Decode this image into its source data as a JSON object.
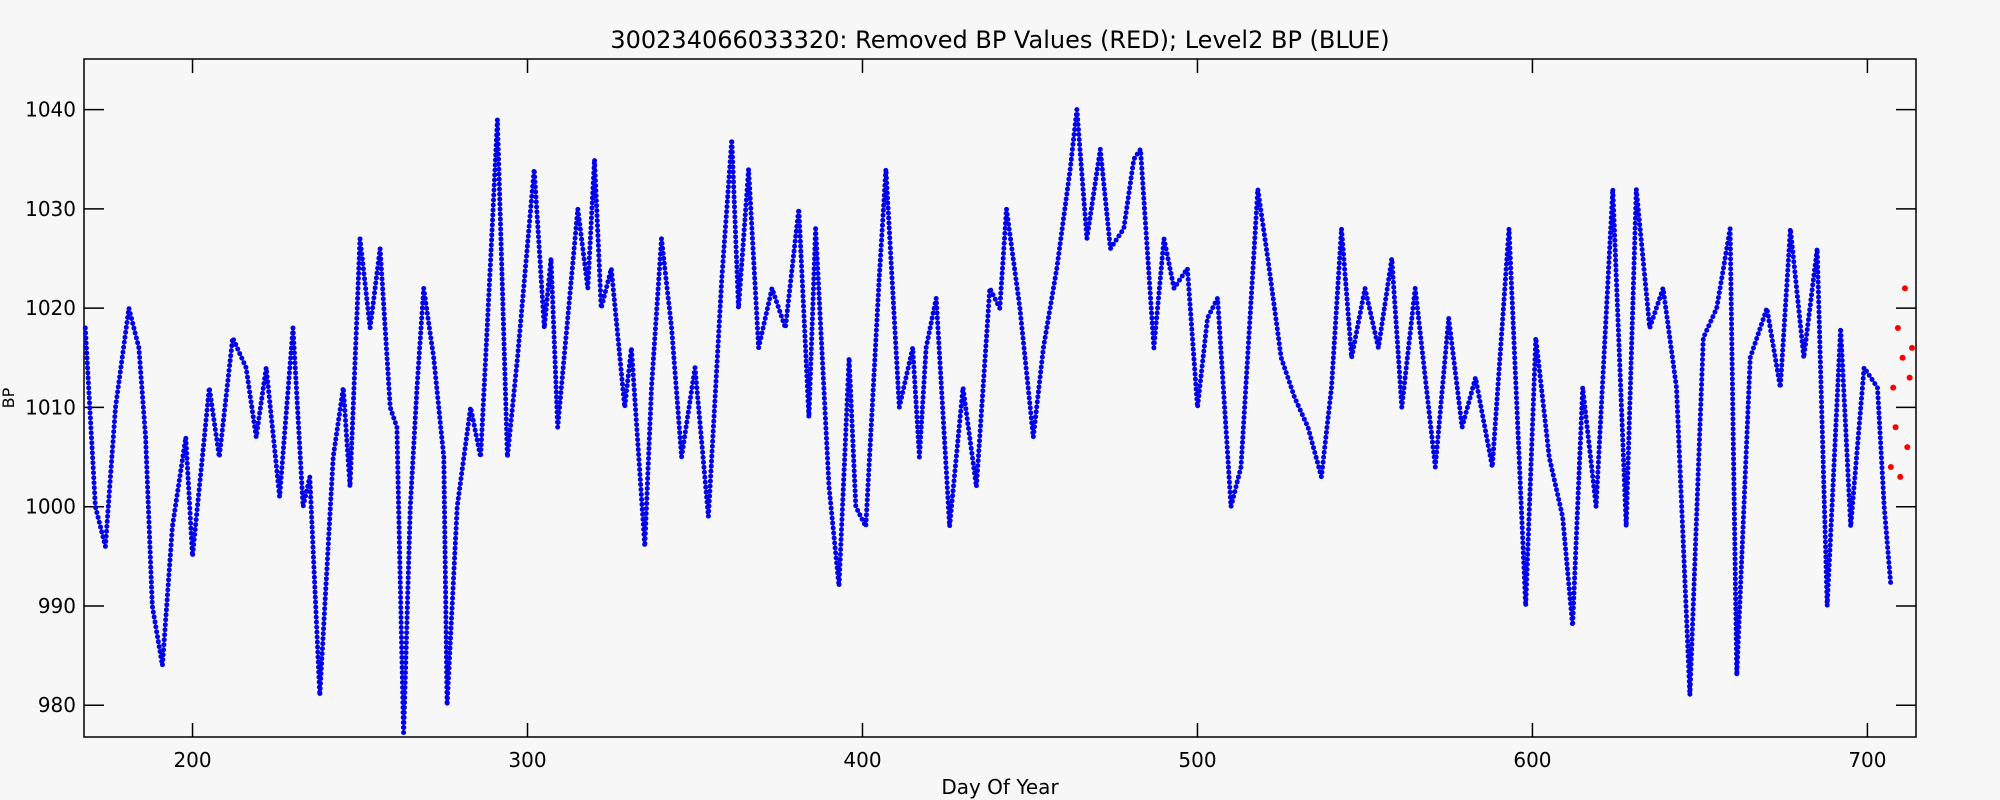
{
  "chart_data": {
    "type": "scatter",
    "title": "300234066033320: Removed BP Values (RED); Level2 BP (BLUE)",
    "x_label": "Day Of Year",
    "y_label": "BP",
    "xlim": [
      167.6,
      714.5
    ],
    "ylim": [
      976.8,
      1045.1
    ],
    "xticks": [
      200,
      300,
      400,
      500,
      600,
      700
    ],
    "yticks": [
      980,
      990,
      1000,
      1010,
      1020,
      1030,
      1040
    ],
    "series": [
      {
        "color": "#0000ee",
        "x": [
          168,
          171,
          174,
          177,
          181,
          184,
          186,
          188,
          191,
          194,
          198,
          200,
          205,
          208,
          212,
          216,
          219,
          222,
          226,
          230,
          233,
          235,
          238,
          242,
          245,
          247,
          250,
          253,
          256,
          259,
          261,
          263,
          265,
          267,
          269,
          272,
          275,
          276,
          279,
          283,
          286,
          289,
          291,
          294,
          297,
          302,
          305,
          307,
          309,
          315,
          318,
          320,
          322,
          325,
          329,
          331,
          335,
          337,
          340,
          343,
          346,
          350,
          354,
          358,
          361,
          363,
          366,
          369,
          373,
          377,
          381,
          384,
          386,
          390,
          393,
          396,
          398,
          401,
          405,
          407,
          411,
          415,
          417,
          419,
          422,
          426,
          430,
          434,
          438,
          441,
          443,
          447,
          451,
          454,
          458,
          462,
          464,
          467,
          471,
          474,
          478,
          481,
          483,
          487,
          490,
          493,
          497,
          500,
          503,
          506,
          510,
          513,
          518,
          521,
          525,
          529,
          533,
          537,
          540,
          543,
          546,
          550,
          554,
          558,
          561,
          565,
          571,
          575,
          579,
          583,
          588,
          593,
          598,
          601,
          605,
          609,
          612,
          615,
          619,
          624,
          628,
          631,
          635,
          639,
          643,
          647,
          651,
          655,
          659,
          661,
          665,
          670,
          674,
          677,
          681,
          685,
          688,
          692,
          695,
          699,
          703,
          705,
          707
        ],
        "values": [
          1018,
          1000,
          996,
          1010,
          1020,
          1016,
          1007,
          990,
          984,
          998,
          1007,
          995,
          1012,
          1005,
          1017,
          1014,
          1007,
          1014,
          1001,
          1018,
          1000,
          1003,
          981,
          1005,
          1012,
          1002,
          1027,
          1018,
          1026,
          1010,
          1008,
          977,
          1000,
          1012,
          1022,
          1015,
          1005,
          980,
          1000,
          1010,
          1005,
          1025,
          1039,
          1005,
          1015,
          1034,
          1018,
          1025,
          1008,
          1030,
          1022,
          1035,
          1020,
          1024,
          1010,
          1016,
          996,
          1012,
          1027,
          1018,
          1005,
          1014,
          999,
          1023,
          1037,
          1020,
          1034,
          1016,
          1022,
          1018,
          1030,
          1009,
          1028,
          1002,
          992,
          1015,
          1000,
          998,
          1023,
          1034,
          1010,
          1016,
          1005,
          1016,
          1021,
          998,
          1012,
          1002,
          1022,
          1020,
          1030,
          1020,
          1007,
          1016,
          1024,
          1034,
          1040,
          1027,
          1036,
          1026,
          1028,
          1035,
          1036,
          1016,
          1027,
          1022,
          1024,
          1010,
          1019,
          1021,
          1000,
          1004,
          1032,
          1025,
          1015,
          1011,
          1008,
          1003,
          1012,
          1028,
          1015,
          1022,
          1016,
          1025,
          1010,
          1022,
          1004,
          1019,
          1008,
          1013,
          1004,
          1028,
          990,
          1017,
          1005,
          999,
          988,
          1012,
          1000,
          1032,
          998,
          1032,
          1018,
          1022,
          1012,
          981,
          1017,
          1020,
          1028,
          983,
          1015,
          1020,
          1012,
          1028,
          1015,
          1026,
          990,
          1018,
          998,
          1014,
          1012,
          1000,
          992
        ]
      },
      {
        "color": "#ff0000",
        "x": [
          707,
          707.7,
          708.4,
          709.1,
          709.8,
          710.5,
          711.2,
          711.9,
          712.6,
          713.3
        ],
        "values": [
          1004,
          1012,
          1008,
          1018,
          1003,
          1015,
          1022,
          1006,
          1013,
          1016
        ]
      }
    ]
  }
}
